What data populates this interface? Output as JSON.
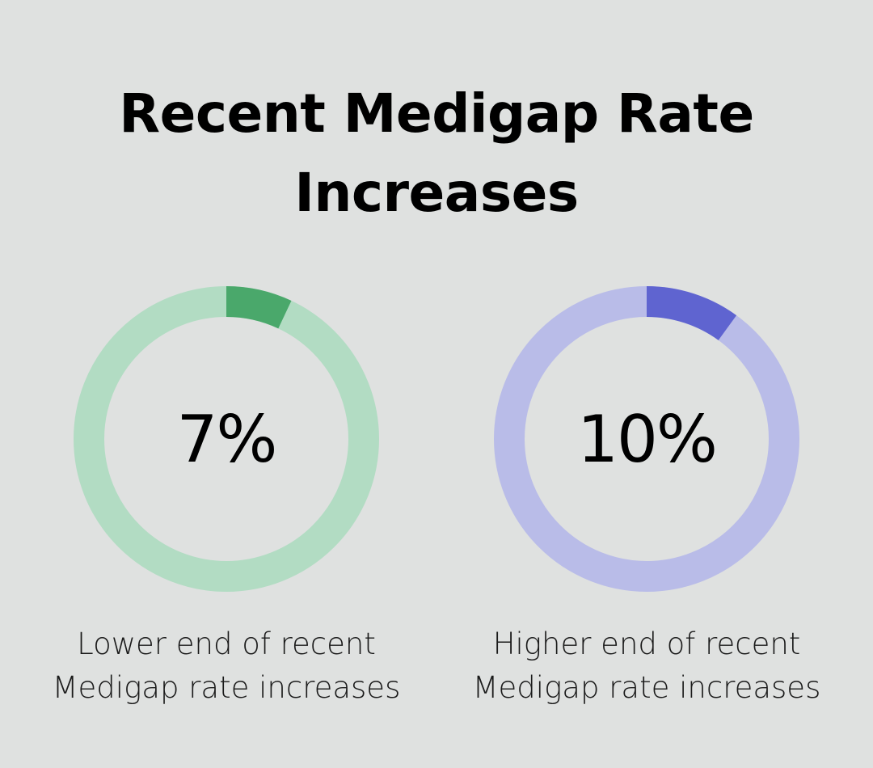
{
  "title": {
    "line1": "Recent Medigap Rate",
    "line2": "Increases"
  },
  "chart_data": [
    {
      "type": "pie",
      "value_label": "7%",
      "value": 7,
      "max": 100,
      "caption": [
        "Lower end of recent",
        "Medigap rate increases"
      ],
      "colors": {
        "fill": "#4aa86b",
        "track": "#b2dcc3"
      }
    },
    {
      "type": "pie",
      "value_label": "10%",
      "value": 10,
      "max": 100,
      "caption": [
        "Higher end of recent",
        "Medigap rate increases"
      ],
      "colors": {
        "fill": "#5f64d0",
        "track": "#b9bce8"
      }
    }
  ]
}
